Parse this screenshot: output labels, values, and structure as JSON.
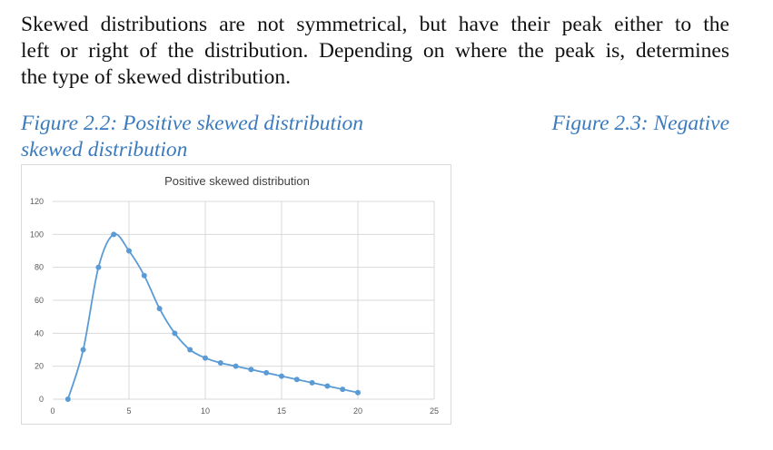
{
  "paragraph": {
    "lines": [
      "Skewed distributions are not symmetrical, but have their peak either to the",
      "left or right of the distribution. Depending on where the peak is, determines",
      "the type of skewed distribution."
    ]
  },
  "captions": {
    "left_line1": "Figure 2.2: Positive skewed distribution",
    "left_line2": "skewed distribution",
    "right": "Figure 2.3: Negative"
  },
  "colors": {
    "caption": "#3b7bbd",
    "series": "#5b9bd5",
    "grid": "#d9d9d9",
    "tick_text": "#595959"
  },
  "chart_data": {
    "type": "scatter",
    "title": "Positive skewed distribution",
    "xlim": [
      0,
      25
    ],
    "ylim": [
      0,
      120
    ],
    "xticks": [
      0,
      5,
      10,
      15,
      20,
      25
    ],
    "yticks": [
      0,
      20,
      40,
      60,
      80,
      100,
      120
    ],
    "grid": true,
    "smooth_line": true,
    "x": [
      1,
      2,
      3,
      4,
      5,
      6,
      7,
      8,
      9,
      10,
      11,
      12,
      13,
      14,
      15,
      16,
      17,
      18,
      19,
      20
    ],
    "y": [
      0,
      30,
      80,
      100,
      90,
      75,
      55,
      40,
      30,
      25,
      22,
      20,
      18,
      16,
      14,
      12,
      10,
      8,
      6,
      4
    ]
  }
}
